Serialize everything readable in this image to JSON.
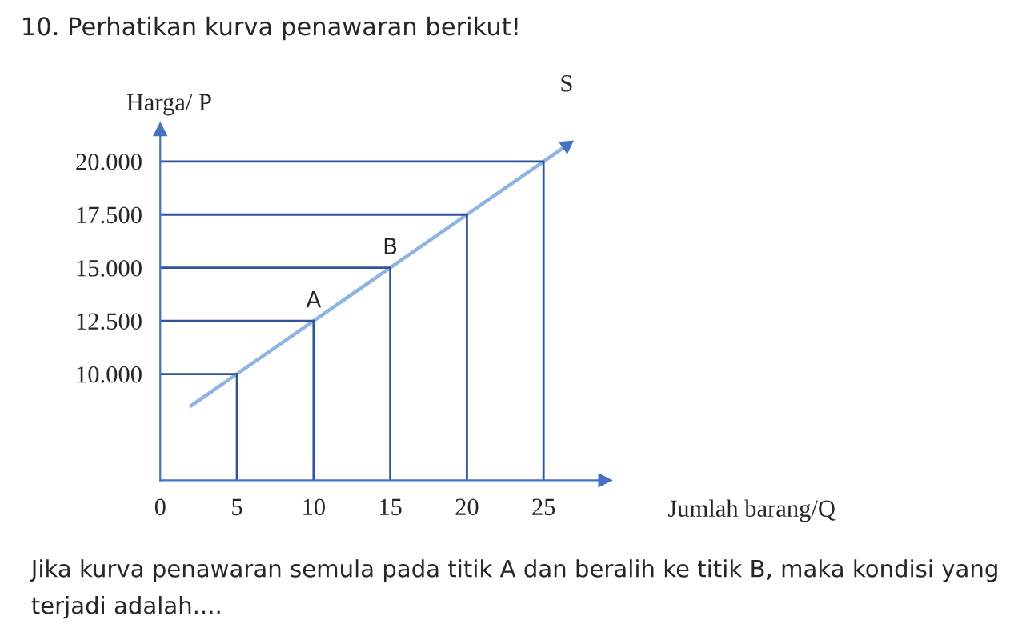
{
  "chart_data": {
    "type": "line",
    "title": "10. Perhatikan kurva penawaran berikut!",
    "xlabel": "Jumlah barang/Q",
    "ylabel": "Harga/ P",
    "series": [
      {
        "x": [
          2,
          5,
          10,
          15,
          20,
          25,
          26.5
        ],
        "values": [
          8500,
          10000,
          12500,
          15000,
          17500,
          20000,
          20750
        ],
        "color": "#8eb4e3"
      },
      {
        "x": [
          0,
          5,
          5
        ],
        "values": [
          10000,
          10000,
          5000
        ],
        "color": "#2f5597"
      },
      {
        "x": [
          0,
          10,
          10
        ],
        "values": [
          12500,
          12500,
          5000
        ],
        "color": "#2f5597"
      },
      {
        "x": [
          0,
          15,
          15
        ],
        "values": [
          15000,
          15000,
          5000
        ],
        "color": "#2f5597"
      },
      {
        "x": [
          0,
          20,
          20
        ],
        "values": [
          17500,
          17500,
          5000
        ],
        "color": "#2f5597"
      },
      {
        "x": [
          0,
          25,
          25
        ],
        "values": [
          20000,
          20000,
          5000
        ],
        "color": "#2f5597"
      }
    ],
    "xlim": [
      0,
      29
    ],
    "ylim": [
      5000,
      21500
    ],
    "xticks": [
      0,
      5,
      10,
      15,
      20,
      25
    ],
    "yticks": [
      {
        "value": 10000,
        "label": "10.000"
      },
      {
        "value": 12500,
        "label": "12.500"
      },
      {
        "value": 15000,
        "label": "15.000"
      },
      {
        "value": 17500,
        "label": "17.500"
      },
      {
        "value": 20000,
        "label": "20.000"
      }
    ],
    "grid": false,
    "line_style": "solid",
    "annotations": [
      {
        "text": "S",
        "x": 26.5,
        "y": 20750
      },
      {
        "text": "A",
        "x": 10,
        "y": 12500
      },
      {
        "text": "B",
        "x": 15,
        "y": 15000
      },
      "Jika kurva penawaran semula pada titik A dan beralih ke titik B, maka kondisi yang terjadi adalah...."
    ]
  }
}
